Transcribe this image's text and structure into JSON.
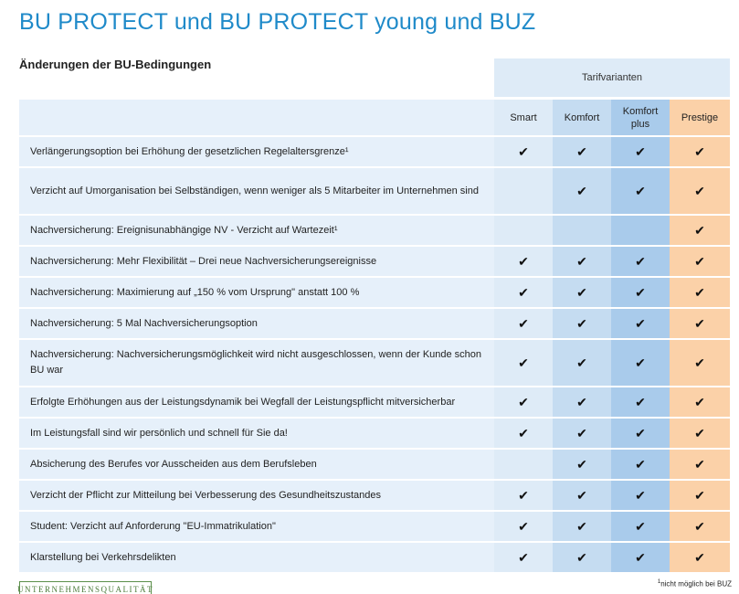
{
  "title": "BU PROTECT und BU PROTECT young und BUZ",
  "subtitle": "Änderungen der BU-Bedingungen",
  "tarif_header": "Tarifvarianten",
  "columns": {
    "smart": "Smart",
    "komfort": "Komfort",
    "komfort_plus": "Komfort plus",
    "prestige": "Prestige"
  },
  "check_symbol": "✔",
  "colors": {
    "title": "#1f8ac9",
    "smart": "#deebf7",
    "komfort": "#c5dcf1",
    "komfort_plus": "#a9cbeb",
    "prestige": "#fbd1a8"
  },
  "rows": [
    {
      "label": "Verlängerungsoption bei Erhöhung der gesetzlichen Regelaltersgrenze¹",
      "smart": "✔",
      "komfort": "✔",
      "komfort_plus": "✔",
      "prestige": "✔"
    },
    {
      "label": "Verzicht auf Umorganisation bei Selbständigen, wenn weniger als 5 Mitarbeiter im Unternehmen sind",
      "smart": "",
      "komfort": "✔",
      "komfort_plus": "✔",
      "prestige": "✔"
    },
    {
      "label": "Nachversicherung: Ereignisunabhängige NV - Verzicht auf Wartezeit¹",
      "smart": "",
      "komfort": "",
      "komfort_plus": "",
      "prestige": "✔"
    },
    {
      "label": "Nachversicherung: Mehr Flexibilität – Drei neue Nachversicherungsereignisse",
      "smart": "✔",
      "komfort": "✔",
      "komfort_plus": "✔",
      "prestige": "✔"
    },
    {
      "label": "Nachversicherung: Maximierung auf „150 % vom Ursprung\" anstatt 100 %",
      "smart": "✔",
      "komfort": "✔",
      "komfort_plus": "✔",
      "prestige": "✔"
    },
    {
      "label": "Nachversicherung: 5 Mal Nachversicherungsoption",
      "smart": "✔",
      "komfort": "✔",
      "komfort_plus": "✔",
      "prestige": "✔"
    },
    {
      "label": "Nachversicherung: Nachversicherungsmöglichkeit wird nicht ausgeschlossen, wenn der Kunde schon BU war",
      "smart": "✔",
      "komfort": "✔",
      "komfort_plus": "✔",
      "prestige": "✔"
    },
    {
      "label": "Erfolgte Erhöhungen aus der Leistungsdynamik bei Wegfall der Leistungspflicht mitversicherbar",
      "smart": "✔",
      "komfort": "✔",
      "komfort_plus": "✔",
      "prestige": "✔"
    },
    {
      "label": "Im Leistungsfall sind wir persönlich und schnell für Sie da!",
      "smart": "✔",
      "komfort": "✔",
      "komfort_plus": "✔",
      "prestige": "✔"
    },
    {
      "label": "Absicherung des Berufes vor Ausscheiden aus dem Berufsleben",
      "smart": "",
      "komfort": "✔",
      "komfort_plus": "✔",
      "prestige": "✔"
    },
    {
      "label": "Verzicht der Pflicht zur Mitteilung bei Verbesserung des Gesundheitszustandes",
      "smart": "✔",
      "komfort": "✔",
      "komfort_plus": "✔",
      "prestige": "✔"
    },
    {
      "label": "Student: Verzicht auf Anforderung \"EU-Immatrikulation\"",
      "smart": "✔",
      "komfort": "✔",
      "komfort_plus": "✔",
      "prestige": "✔"
    },
    {
      "label": "Klarstellung bei Verkehrsdelikten",
      "smart": "✔",
      "komfort": "✔",
      "komfort_plus": "✔",
      "prestige": "✔"
    }
  ],
  "footer": {
    "logo_text": "UNTERNEHMENSQUALITÄT",
    "footnote_mark": "1",
    "footnote_text": "nicht möglich bei BUZ"
  }
}
